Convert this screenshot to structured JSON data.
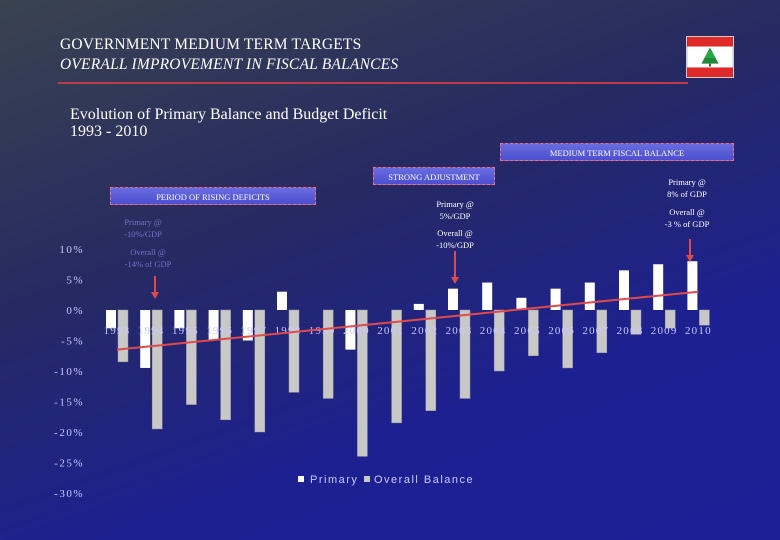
{
  "header": {
    "title": "GOVERNMENT MEDIUM TERM TARGETS",
    "subtitle": "OVERALL IMPROVEMENT IN FISCAL BALANCES"
  },
  "subheader": {
    "line1": "Evolution of Primary Balance and Budget Deficit",
    "line2": "1993 - 2010"
  },
  "annotations": {
    "medium_term": "MEDIUM TERM FISCAL BALANCE",
    "strong_adjustment": "STRONG ADJUSTMENT",
    "rising_deficits": "PERIOD OF RISING DEFICITS",
    "early_primary_1": "Primary @",
    "early_primary_2": "-10%/GDP",
    "early_overall_1": "Overall @",
    "early_overall_2": "-14% of GDP",
    "mid_primary_1": "Primary @",
    "mid_primary_2": "5%/GDP",
    "mid_overall_1": "Overall @",
    "mid_overall_2": "-10%/GDP",
    "late_primary_1": "Primary @",
    "late_primary_2": "8% of GDP",
    "late_overall_1": "Overall @",
    "late_overall_2": "-3 % of GDP"
  },
  "colors": {
    "primary_bar": "#ffffff",
    "overall_bar": "#c8c8c8",
    "trend_line": "#e04a4a",
    "arrow": "#e04a4a",
    "axis_text": "#c8c8ff"
  },
  "chart_data": {
    "type": "bar",
    "title": "",
    "xlabel": "",
    "ylabel": "",
    "ylim": [
      -30,
      10
    ],
    "y_ticks": [
      "10%",
      "5%",
      "0%",
      "-5%",
      "-10%",
      "-15%",
      "-20%",
      "-25%",
      "-30%"
    ],
    "categories": [
      "1993",
      "1994",
      "1995",
      "1996",
      "1997",
      "1998",
      "1999",
      "2000",
      "2001",
      "2002",
      "2003",
      "2004",
      "2005",
      "2006",
      "2007",
      "2008",
      "2009",
      "2010"
    ],
    "series": [
      {
        "name": "Primary",
        "values": [
          -3,
          -9.5,
          -3,
          -5,
          -5,
          3,
          0,
          -6.5,
          0,
          1,
          3.5,
          4.5,
          2,
          3.5,
          4.5,
          6.5,
          7.5,
          8
        ]
      },
      {
        "name": "Overall Balance",
        "values": [
          -8.5,
          -19.5,
          -15.5,
          -18,
          -20,
          -13.5,
          -14.5,
          -24,
          -18.5,
          -16.5,
          -14.5,
          -10,
          -7.5,
          -9.5,
          -7,
          -4,
          -3,
          -2.5
        ]
      }
    ],
    "trend_line": {
      "from_year": "1993",
      "from_value": -6.5,
      "to_year": "2010",
      "to_value": 3
    },
    "legend": "bottom"
  }
}
